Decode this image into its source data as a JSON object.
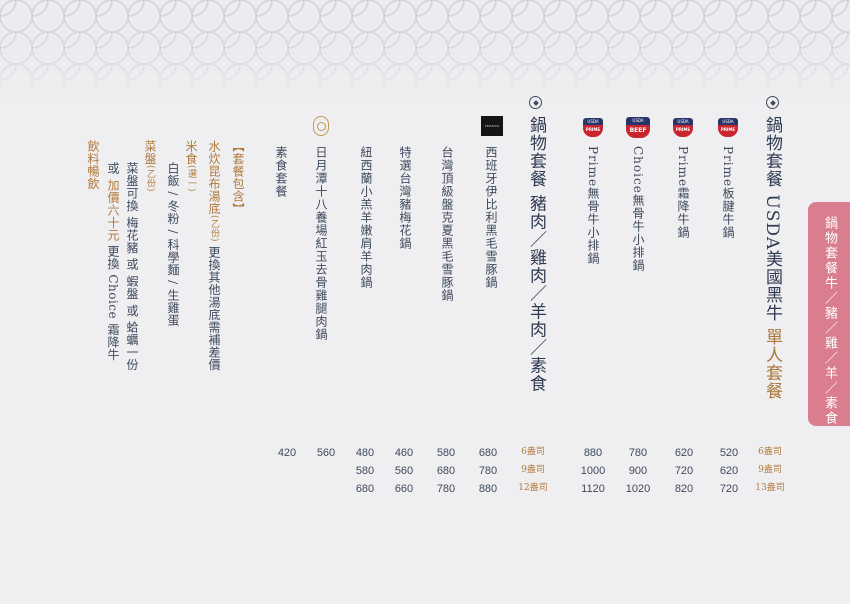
{
  "tab": {
    "label": "鍋物套餐牛／豬／雞／羊／素食"
  },
  "section1": {
    "heading": "鍋物套餐 USDA美國黑牛",
    "heading_accent": "單人套餐",
    "sizes": [
      "6盎司",
      "9盎司",
      "13盎司"
    ],
    "items": [
      {
        "name": "Prime板腱牛鍋",
        "badge_top": "USDA",
        "badge_bottom": "PRIME",
        "prices": [
          "520",
          "620",
          "720"
        ]
      },
      {
        "name": "Prime霜降牛鍋",
        "badge_top": "USDA",
        "badge_bottom": "PRIME",
        "prices": [
          "620",
          "720",
          "820"
        ]
      },
      {
        "name": "Choice無骨牛小排鍋",
        "badge_top": "USDA CHOICE",
        "badge_bottom": "BEEF",
        "prices": [
          "780",
          "900",
          "1020"
        ]
      },
      {
        "name": "Prime無骨牛小排鍋",
        "badge_top": "USDA",
        "badge_bottom": "PRIME",
        "prices": [
          "880",
          "1000",
          "1120"
        ]
      }
    ]
  },
  "section2": {
    "heading": "鍋物套餐 豬肉／雞肉／羊肉／素食",
    "sizes": [
      "6盎司",
      "9盎司",
      "12盎司"
    ],
    "items": [
      {
        "name": "西班牙伊比利黑毛雪豚鍋",
        "logo": "FERMIN",
        "prices": [
          "680",
          "780",
          "880"
        ]
      },
      {
        "name": "台灣頂級盤克夏黑毛雪豚鍋",
        "prices": [
          "580",
          "680",
          "780"
        ]
      },
      {
        "name": "特選台灣豬梅花鍋",
        "prices": [
          "460",
          "560",
          "660"
        ]
      },
      {
        "name": "紐西蘭小羔羊嫩肩羊肉鍋",
        "prices": [
          "480",
          "580",
          "680"
        ]
      },
      {
        "name": "日月潭十八養場紅玉去骨雞腿肉鍋",
        "prices": [
          "560"
        ]
      },
      {
        "name": "素食套餐",
        "prices": [
          "420"
        ]
      }
    ]
  },
  "set_includes": {
    "title": "【套餐包含】",
    "broth_label": "水炊昆布湯底",
    "broth_sub": "(乙份)",
    "broth_note": "更換其他湯底需補差價",
    "rice_label": "米食",
    "rice_sub": "(選一)",
    "rice_options": "白飯 / 冬粉 / 科學麵 / 生雞蛋",
    "veg_label": "菜盤",
    "veg_sub": "(乙份)",
    "veg_note": "菜盤可換 梅花豬 或 蝦盤 或 蛤蠣一份",
    "upgrade_prefix": "或",
    "upgrade_price": "加價六十元",
    "upgrade_suffix": "更換 Choice 霜降牛",
    "drinks": "飲料暢飲"
  }
}
